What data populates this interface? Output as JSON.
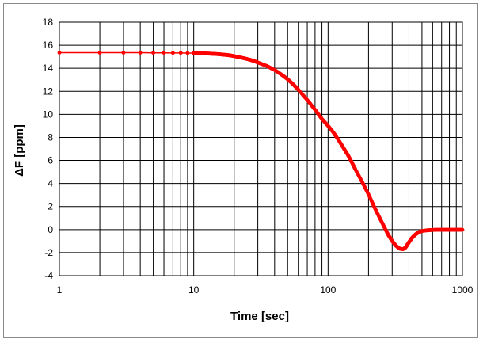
{
  "chart_data": {
    "type": "scatter",
    "xlabel": "Time [sec]",
    "ylabel": "ΔF [ppm]",
    "xscale": "log",
    "xlim": [
      1,
      1000
    ],
    "ylim": [
      -4,
      18
    ],
    "grid": true,
    "xticks": [
      "1",
      "10",
      "100",
      "1000"
    ],
    "yticks": [
      "-4",
      "-2",
      "0",
      "2",
      "4",
      "6",
      "8",
      "10",
      "12",
      "14",
      "16",
      "18"
    ],
    "series": [
      {
        "color": "#ff0000",
        "marker": "circle",
        "x": [
          1,
          2,
          3,
          4,
          5,
          6,
          7,
          8,
          9,
          10,
          11,
          12,
          13,
          14,
          15,
          16,
          17,
          18,
          19,
          20,
          22,
          24,
          26,
          28,
          30,
          35,
          40,
          45,
          50,
          55,
          60,
          70,
          80,
          90,
          100,
          110,
          120,
          130,
          140,
          150,
          160,
          180,
          200,
          220,
          240,
          260,
          280,
          300,
          320,
          340,
          360,
          370,
          380,
          390,
          400,
          420,
          440,
          460,
          480,
          500,
          550,
          600,
          650,
          700,
          750,
          800,
          850,
          900,
          950,
          1000
        ],
        "y": [
          15.35,
          15.35,
          15.35,
          15.35,
          15.34,
          15.34,
          15.33,
          15.33,
          15.32,
          15.31,
          15.3,
          15.29,
          15.27,
          15.25,
          15.23,
          15.2,
          15.17,
          15.14,
          15.1,
          15.05,
          14.95,
          14.85,
          14.75,
          14.63,
          14.5,
          14.2,
          13.85,
          13.45,
          13.05,
          12.6,
          12.15,
          11.25,
          10.4,
          9.6,
          9.0,
          8.4,
          7.75,
          7.1,
          6.5,
          5.85,
          5.2,
          4.1,
          3.05,
          2.0,
          1.1,
          0.3,
          -0.45,
          -1.0,
          -1.4,
          -1.65,
          -1.7,
          -1.65,
          -1.5,
          -1.3,
          -1.1,
          -0.75,
          -0.5,
          -0.32,
          -0.2,
          -0.12,
          -0.06,
          -0.03,
          -0.02,
          -0.02,
          -0.02,
          -0.02,
          -0.02,
          -0.02,
          -0.02,
          -0.02
        ]
      }
    ]
  }
}
